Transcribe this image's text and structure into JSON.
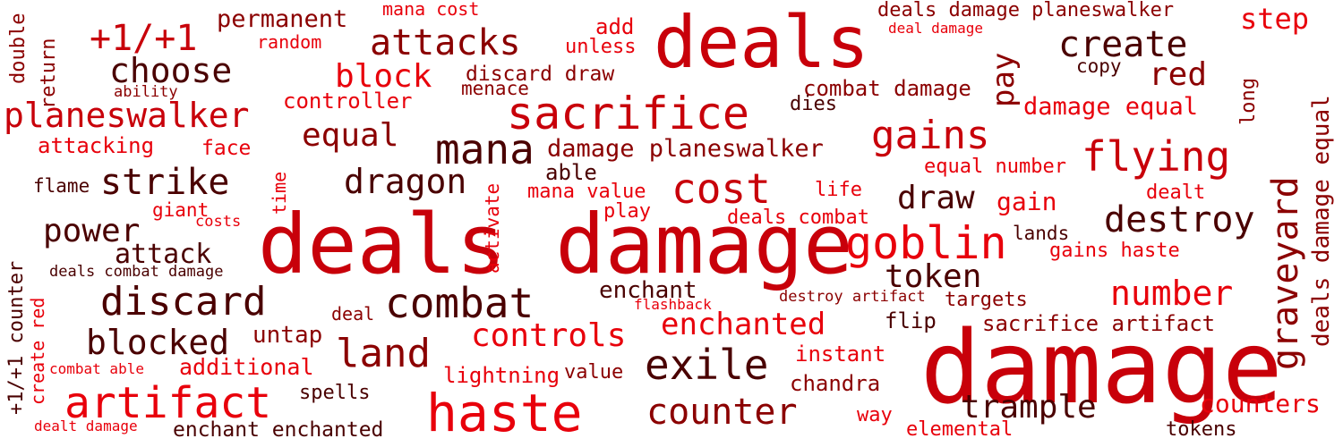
{
  "palette": {
    "bright": "#e8000b",
    "red": "#c8000a",
    "dark": "#8b0000",
    "maroon": "#4a0000"
  },
  "words": [
    {
      "text": "deals damage",
      "color": "red"
    },
    {
      "text": "damage",
      "color": "red"
    },
    {
      "text": "deals",
      "color": "red"
    },
    {
      "text": "haste",
      "color": "bright"
    },
    {
      "text": "sacrifice",
      "color": "red"
    },
    {
      "text": "goblin",
      "color": "bright"
    },
    {
      "text": "artifact",
      "color": "bright"
    },
    {
      "text": "mana",
      "color": "maroon"
    },
    {
      "text": "combat",
      "color": "maroon"
    },
    {
      "text": "exile",
      "color": "maroon"
    },
    {
      "text": "cost",
      "color": "red"
    },
    {
      "text": "discard",
      "color": "maroon"
    },
    {
      "text": "counter",
      "color": "dark"
    },
    {
      "text": "land",
      "color": "dark"
    },
    {
      "text": "flying",
      "color": "red"
    },
    {
      "text": "gains",
      "color": "red"
    },
    {
      "text": "create",
      "color": "maroon"
    },
    {
      "text": "attacks",
      "color": "dark"
    },
    {
      "text": "strike",
      "color": "maroon"
    },
    {
      "text": "graveyard",
      "color": "dark"
    },
    {
      "text": "destroy",
      "color": "maroon"
    },
    {
      "text": "planeswalker",
      "color": "red"
    },
    {
      "text": "choose",
      "color": "maroon"
    },
    {
      "text": "+1/+1",
      "color": "red"
    },
    {
      "text": "blocked",
      "color": "maroon"
    },
    {
      "text": "dragon",
      "color": "maroon"
    },
    {
      "text": "controls",
      "color": "bright"
    },
    {
      "text": "number",
      "color": "bright"
    },
    {
      "text": "enchanted",
      "color": "bright"
    },
    {
      "text": "trample",
      "color": "maroon"
    },
    {
      "text": "token",
      "color": "maroon"
    },
    {
      "text": "equal",
      "color": "dark"
    },
    {
      "text": "red",
      "color": "dark"
    },
    {
      "text": "step",
      "color": "bright"
    },
    {
      "text": "power",
      "color": "maroon"
    },
    {
      "text": "draw",
      "color": "maroon"
    },
    {
      "text": "block",
      "color": "bright"
    },
    {
      "text": "pay",
      "color": "dark"
    },
    {
      "text": "counters",
      "color": "bright"
    },
    {
      "text": "deals damage planeswalker",
      "color": "dark"
    },
    {
      "text": "damage planeswalker",
      "color": "dark"
    },
    {
      "text": "deals damage equal",
      "color": "dark"
    },
    {
      "text": "damage equal",
      "color": "bright"
    },
    {
      "text": "attack",
      "color": "maroon"
    },
    {
      "text": "permanent",
      "color": "dark"
    },
    {
      "text": "untap",
      "color": "dark"
    },
    {
      "text": "gain",
      "color": "bright"
    },
    {
      "text": "enchant",
      "color": "maroon"
    },
    {
      "text": "sacrifice artifact",
      "color": "dark"
    },
    {
      "text": "combat damage",
      "color": "dark"
    },
    {
      "text": "additional",
      "color": "bright"
    },
    {
      "text": "enchant enchanted",
      "color": "maroon"
    },
    {
      "text": "chandra",
      "color": "dark"
    },
    {
      "text": "attacking",
      "color": "bright"
    },
    {
      "text": "gains haste",
      "color": "bright"
    },
    {
      "text": "lightning",
      "color": "bright"
    },
    {
      "text": "elemental",
      "color": "bright"
    },
    {
      "text": "tokens",
      "color": "maroon"
    },
    {
      "text": "instant",
      "color": "bright"
    },
    {
      "text": "spells",
      "color": "maroon"
    },
    {
      "text": "equal number",
      "color": "bright"
    },
    {
      "text": "deals combat",
      "color": "bright"
    },
    {
      "text": "controller",
      "color": "bright"
    },
    {
      "text": "value",
      "color": "dark"
    },
    {
      "text": "targets",
      "color": "dark"
    },
    {
      "text": "mana value",
      "color": "bright"
    },
    {
      "text": "discard draw",
      "color": "dark"
    },
    {
      "text": "able",
      "color": "maroon"
    },
    {
      "text": "play",
      "color": "bright"
    },
    {
      "text": "flip",
      "color": "maroon"
    },
    {
      "text": "way",
      "color": "bright"
    },
    {
      "text": "face",
      "color": "bright"
    },
    {
      "text": "dies",
      "color": "maroon"
    },
    {
      "text": "life",
      "color": "bright"
    },
    {
      "text": "menace",
      "color": "dark"
    },
    {
      "text": "add",
      "color": "bright"
    },
    {
      "text": "unless",
      "color": "bright"
    },
    {
      "text": "copy",
      "color": "maroon"
    },
    {
      "text": "lands",
      "color": "maroon"
    },
    {
      "text": "dealt",
      "color": "bright"
    },
    {
      "text": "giant",
      "color": "bright"
    },
    {
      "text": "random",
      "color": "bright"
    },
    {
      "text": "mana cost",
      "color": "bright"
    },
    {
      "text": "flame",
      "color": "maroon"
    },
    {
      "text": "deal",
      "color": "dark"
    },
    {
      "text": "deals combat damage",
      "color": "maroon"
    },
    {
      "text": "destroy artifact",
      "color": "dark"
    },
    {
      "text": "flashback",
      "color": "bright"
    },
    {
      "text": "combat able",
      "color": "bright"
    },
    {
      "text": "dealt damage",
      "color": "bright"
    },
    {
      "text": "costs",
      "color": "bright"
    },
    {
      "text": "ability",
      "color": "dark"
    },
    {
      "text": "deal damage",
      "color": "bright"
    },
    {
      "text": "double",
      "color": "dark"
    },
    {
      "text": "return",
      "color": "dark"
    },
    {
      "text": "time",
      "color": "bright"
    },
    {
      "text": "activate",
      "color": "bright"
    },
    {
      "text": "+1/+1 counter",
      "color": "maroon"
    },
    {
      "text": "create red",
      "color": "bright"
    },
    {
      "text": "long",
      "color": "dark"
    }
  ]
}
